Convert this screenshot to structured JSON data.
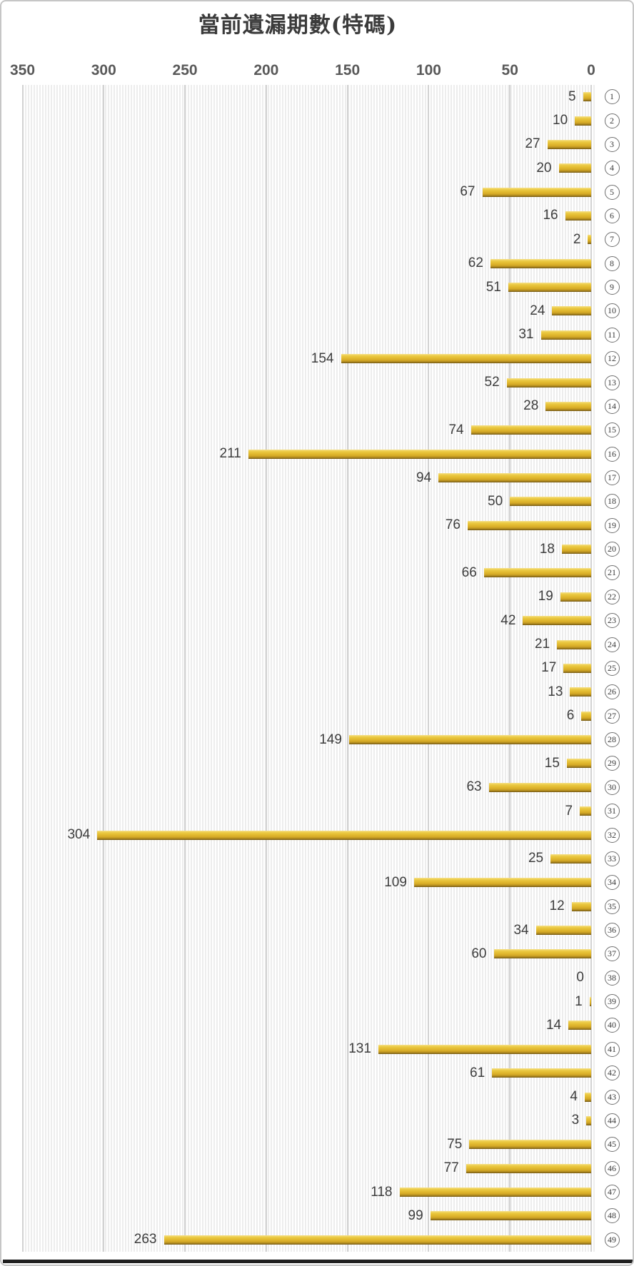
{
  "chart_data": {
    "type": "bar",
    "orientation": "horizontal",
    "value_axis_position": "top",
    "value_axis_reversed": true,
    "title": "當前遺漏期數(特碼)",
    "xlabel": "",
    "ylabel": "",
    "axis_ticks": [
      350,
      300,
      250,
      200,
      150,
      100,
      50,
      0
    ],
    "axis_range": [
      0,
      350
    ],
    "grid": true,
    "categories": [
      "1",
      "2",
      "3",
      "4",
      "5",
      "6",
      "7",
      "8",
      "9",
      "10",
      "11",
      "12",
      "13",
      "14",
      "15",
      "16",
      "17",
      "18",
      "19",
      "20",
      "21",
      "22",
      "23",
      "24",
      "25",
      "26",
      "27",
      "28",
      "29",
      "30",
      "31",
      "32",
      "33",
      "34",
      "35",
      "36",
      "37",
      "38",
      "39",
      "40",
      "41",
      "42",
      "43",
      "44",
      "45",
      "46",
      "47",
      "48",
      "49"
    ],
    "category_label_style": "circled-number",
    "values": [
      5,
      10,
      27,
      20,
      67,
      16,
      2,
      62,
      51,
      24,
      31,
      154,
      52,
      28,
      74,
      211,
      94,
      50,
      76,
      18,
      66,
      19,
      42,
      21,
      17,
      13,
      6,
      149,
      15,
      63,
      7,
      304,
      25,
      109,
      12,
      34,
      60,
      0,
      1,
      14,
      131,
      61,
      4,
      3,
      75,
      77,
      118,
      99,
      263
    ],
    "colors": {
      "bar_gold": "#e2ba30",
      "bar_highlight": "#f6e18c",
      "bar_shadow": "#6f5513",
      "title_text": "#3b3b3b",
      "axis_text": "#595959",
      "value_text": "#3d3d3d",
      "gridline": "#d2d2d2",
      "plot_stripe": "#ededed",
      "frame_border": "#c6c6c6",
      "bottom_rule": "#202020"
    }
  }
}
